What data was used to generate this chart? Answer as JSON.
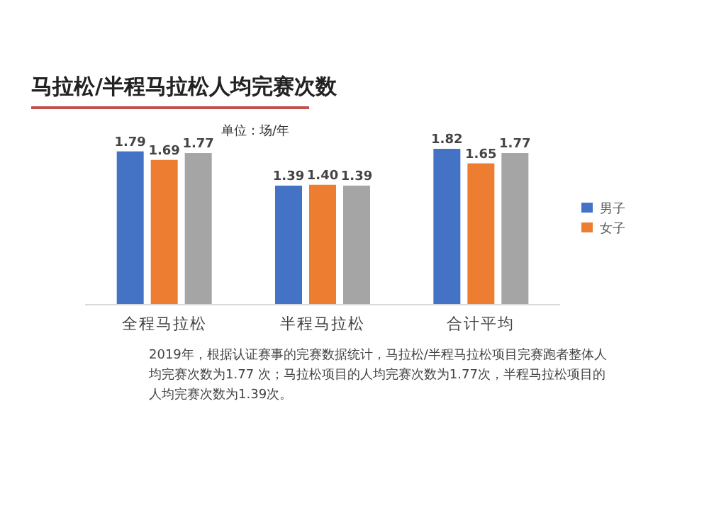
{
  "chart_data": {
    "type": "bar",
    "title": "马拉松/半程马拉松人均完赛次数",
    "subtitle": "单位：场/年",
    "categories": [
      "全程马拉松",
      "半程马拉松",
      "合计平均"
    ],
    "series": [
      {
        "name": "男子",
        "color": "#4472c4",
        "values": [
          1.79,
          1.39,
          1.82
        ]
      },
      {
        "name": "女子",
        "color": "#ed7d31",
        "values": [
          1.69,
          1.4,
          1.65
        ],
        "value_labels": [
          "1.69",
          "1.40",
          "1.65"
        ]
      },
      {
        "color": "#a5a5a5",
        "values": [
          1.77,
          1.39,
          1.77
        ]
      }
    ],
    "data_labels": true,
    "legend": "right",
    "annotations": [
      "2019年，根据认证赛事的完赛数据统计，马拉松/半程马拉松项目完赛跑者整体人均完赛次数为1.77 次；马拉松项目的人均完赛次数为1.77次，半程马拉松项目的人均完赛次数为1.39次。"
    ]
  }
}
